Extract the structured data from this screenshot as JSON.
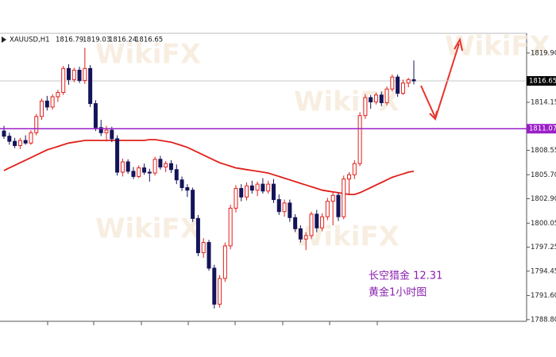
{
  "chart_data": {
    "type": "candlestick",
    "symbol": "XAUUSD,H1",
    "up_color": "#e0201b",
    "down_color": "#14145a",
    "open": [
      1810.8,
      1810.2,
      1809.6,
      1809.1,
      1809.7,
      1809.4,
      1810.6,
      1812.5,
      1814.3,
      1813.6,
      1814.8,
      1815.3,
      1818.1,
      1816.8,
      1817.9,
      1816.7,
      1818.1,
      1814.0,
      1811.2,
      1810.6,
      1810.9,
      1809.9,
      1806.0,
      1807.2,
      1806.1,
      1805.5,
      1806.5,
      1806.0,
      1805.9,
      1807.5,
      1806.6,
      1807.0,
      1806.3,
      1805.1,
      1804.2,
      1803.9,
      1800.6,
      1796.6,
      1797.8,
      1794.8,
      1790.6,
      1793.6,
      1797.4,
      1801.8,
      1804.1,
      1803.1,
      1804.4,
      1803.9,
      1804.6,
      1803.8,
      1804.6,
      1802.8,
      1801.4,
      1802.4,
      1800.7,
      1799.4,
      1798.2,
      1798.6,
      1801.1,
      1799.5,
      1800.8,
      1802.6,
      1803.3,
      1800.8,
      1805.2,
      1805.7,
      1807.0,
      1812.6,
      1814.7,
      1814.2,
      1815.0,
      1814.1,
      1815.7,
      1817.1,
      1815.2,
      1816.4,
      1816.79
    ],
    "high": [
      1811.4,
      1810.6,
      1810.0,
      1810.0,
      1810.3,
      1810.9,
      1812.8,
      1814.6,
      1814.9,
      1815.1,
      1815.6,
      1818.4,
      1818.6,
      1818.2,
      1818.3,
      1820.5,
      1818.5,
      1814.4,
      1812.1,
      1811.4,
      1811.3,
      1810.3,
      1807.6,
      1807.5,
      1806.6,
      1806.8,
      1807.0,
      1806.4,
      1807.8,
      1807.9,
      1807.3,
      1807.4,
      1806.9,
      1805.5,
      1804.6,
      1804.2,
      1801.0,
      1798.3,
      1798.1,
      1795.2,
      1794.0,
      1797.8,
      1802.2,
      1804.5,
      1804.6,
      1804.8,
      1805.0,
      1804.9,
      1805.3,
      1805.0,
      1805.2,
      1803.4,
      1802.8,
      1802.8,
      1801.1,
      1799.8,
      1799.0,
      1801.4,
      1801.6,
      1801.2,
      1803.0,
      1803.7,
      1803.6,
      1805.6,
      1806.0,
      1807.4,
      1813.0,
      1815.1,
      1815.0,
      1815.3,
      1815.4,
      1816.0,
      1817.4,
      1817.4,
      1816.8,
      1817.0,
      1819.03
    ],
    "low": [
      1809.9,
      1809.2,
      1808.8,
      1808.7,
      1809.2,
      1809.2,
      1810.3,
      1812.1,
      1813.2,
      1813.3,
      1814.2,
      1815.0,
      1816.2,
      1816.5,
      1816.4,
      1816.3,
      1813.6,
      1810.8,
      1810.2,
      1809.6,
      1809.5,
      1805.6,
      1805.5,
      1805.8,
      1805.2,
      1805.3,
      1805.7,
      1804.9,
      1805.6,
      1806.3,
      1806.0,
      1805.9,
      1804.6,
      1803.8,
      1803.1,
      1800.2,
      1796.2,
      1796.0,
      1794.5,
      1790.1,
      1790.2,
      1793.2,
      1797.0,
      1801.3,
      1802.6,
      1802.7,
      1803.5,
      1803.2,
      1803.5,
      1803.5,
      1802.4,
      1801.0,
      1800.8,
      1800.2,
      1799.0,
      1797.8,
      1796.9,
      1798.2,
      1799.0,
      1799.1,
      1800.4,
      1799.8,
      1800.3,
      1800.5,
      1803.4,
      1805.2,
      1806.7,
      1812.2,
      1813.4,
      1813.9,
      1813.7,
      1813.8,
      1815.4,
      1814.8,
      1815.0,
      1815.9,
      1816.24
    ],
    "close": [
      1810.2,
      1809.6,
      1809.1,
      1809.7,
      1809.4,
      1810.6,
      1812.5,
      1814.3,
      1813.6,
      1814.8,
      1815.3,
      1818.1,
      1816.8,
      1817.9,
      1816.7,
      1818.1,
      1814.0,
      1811.2,
      1810.6,
      1810.9,
      1809.9,
      1806.0,
      1807.2,
      1806.1,
      1805.5,
      1806.5,
      1806.0,
      1805.9,
      1807.5,
      1806.6,
      1807.0,
      1806.3,
      1805.1,
      1804.2,
      1803.9,
      1800.6,
      1796.6,
      1797.8,
      1794.8,
      1790.6,
      1793.6,
      1797.4,
      1801.8,
      1804.1,
      1803.1,
      1804.4,
      1803.9,
      1804.6,
      1803.8,
      1804.6,
      1802.8,
      1801.4,
      1802.4,
      1800.7,
      1799.4,
      1798.2,
      1798.6,
      1801.1,
      1799.5,
      1800.8,
      1802.6,
      1803.3,
      1800.8,
      1805.2,
      1805.7,
      1807.0,
      1812.6,
      1814.7,
      1814.2,
      1815.0,
      1814.1,
      1815.7,
      1817.1,
      1815.2,
      1816.4,
      1816.8,
      1816.65
    ],
    "ma": {
      "color": "#e0201b",
      "values": [
        1806.2,
        1806.5,
        1806.8,
        1807.1,
        1807.4,
        1807.7,
        1808.0,
        1808.3,
        1808.6,
        1808.8,
        1809.0,
        1809.2,
        1809.4,
        1809.5,
        1809.6,
        1809.7,
        1809.7,
        1809.7,
        1809.7,
        1809.7,
        1809.7,
        1809.7,
        1809.7,
        1809.7,
        1809.7,
        1809.7,
        1809.7,
        1809.8,
        1809.8,
        1809.7,
        1809.6,
        1809.5,
        1809.3,
        1809.1,
        1808.9,
        1808.6,
        1808.3,
        1808.0,
        1807.7,
        1807.4,
        1807.1,
        1806.9,
        1806.7,
        1806.5,
        1806.4,
        1806.3,
        1806.2,
        1806.1,
        1806.0,
        1805.9,
        1805.7,
        1805.5,
        1805.3,
        1805.1,
        1804.9,
        1804.7,
        1804.5,
        1804.3,
        1804.1,
        1803.9,
        1803.8,
        1803.7,
        1803.6,
        1803.5,
        1803.4,
        1803.4,
        1803.6,
        1803.9,
        1804.2,
        1804.5,
        1804.8,
        1805.1,
        1805.4,
        1805.6,
        1805.8,
        1806.0,
        1806.1
      ]
    },
    "level": {
      "value": 1811.07,
      "color": "#9b1fc8"
    },
    "ylim": [
      1788.6,
      1822.2
    ],
    "yticks": [
      {
        "value": 1819.9,
        "label": "1819.90"
      },
      1814.15,
      1808.55,
      {
        "value": 1805.7,
        "label": "1805.70"
      },
      {
        "value": 1802.9,
        "label": "1802.90"
      },
      1800.05,
      1797.25,
      1794.45,
      {
        "value": 1791.6,
        "label": "1791.60"
      },
      {
        "value": 1788.8,
        "label": "1788.80"
      }
    ],
    "annotations": [
      "长空猎金  12.31",
      "黄金1小时图"
    ],
    "watermark": "WikiFX"
  }
}
